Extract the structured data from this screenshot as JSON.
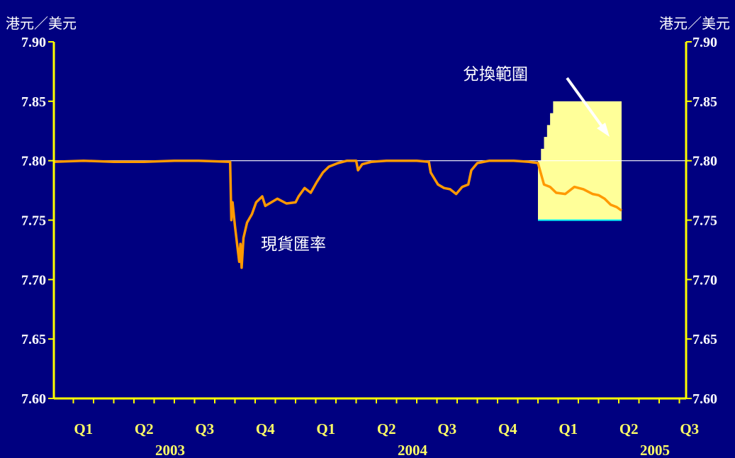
{
  "chart_data": {
    "type": "line",
    "unit_label_left": "港元／美元",
    "unit_label_right": "港元／美元",
    "ylim": [
      7.6,
      7.9
    ],
    "y_ticks": [
      "7.90",
      "7.85",
      "7.80",
      "7.75",
      "7.70",
      "7.65",
      "7.60"
    ],
    "x_quarters": [
      "Q1",
      "Q2",
      "Q3",
      "Q4",
      "Q1",
      "Q2",
      "Q3",
      "Q4",
      "Q1",
      "Q2",
      "Q3"
    ],
    "x_years": [
      "2003",
      "2004",
      "2005"
    ],
    "reference_line": 7.8,
    "series": [
      {
        "name": "現貨匯率",
        "color": "#ff9900",
        "points": [
          [
            0.0,
            7.799
          ],
          [
            0.5,
            7.8
          ],
          [
            1.0,
            7.799
          ],
          [
            1.5,
            7.799
          ],
          [
            2.0,
            7.8
          ],
          [
            2.4,
            7.8
          ],
          [
            2.92,
            7.799
          ],
          [
            2.94,
            7.75
          ],
          [
            2.96,
            7.765
          ],
          [
            3.0,
            7.745
          ],
          [
            3.04,
            7.728
          ],
          [
            3.07,
            7.715
          ],
          [
            3.09,
            7.73
          ],
          [
            3.11,
            7.71
          ],
          [
            3.14,
            7.735
          ],
          [
            3.2,
            7.748
          ],
          [
            3.28,
            7.755
          ],
          [
            3.35,
            7.765
          ],
          [
            3.45,
            7.77
          ],
          [
            3.5,
            7.762
          ],
          [
            3.6,
            7.765
          ],
          [
            3.7,
            7.768
          ],
          [
            3.85,
            7.764
          ],
          [
            4.0,
            7.765
          ],
          [
            4.05,
            7.77
          ],
          [
            4.15,
            7.777
          ],
          [
            4.25,
            7.773
          ],
          [
            4.35,
            7.782
          ],
          [
            4.45,
            7.79
          ],
          [
            4.55,
            7.795
          ],
          [
            4.7,
            7.798
          ],
          [
            4.85,
            7.8
          ],
          [
            5.0,
            7.8
          ],
          [
            5.03,
            7.792
          ],
          [
            5.1,
            7.797
          ],
          [
            5.25,
            7.799
          ],
          [
            5.5,
            7.8
          ],
          [
            6.0,
            7.8
          ],
          [
            6.2,
            7.799
          ],
          [
            6.23,
            7.79
          ],
          [
            6.35,
            7.78
          ],
          [
            6.45,
            7.777
          ],
          [
            6.55,
            7.776
          ],
          [
            6.65,
            7.772
          ],
          [
            6.75,
            7.778
          ],
          [
            6.85,
            7.78
          ],
          [
            6.9,
            7.792
          ],
          [
            7.0,
            7.798
          ],
          [
            7.2,
            7.8
          ],
          [
            7.6,
            7.8
          ],
          [
            7.85,
            7.799
          ],
          [
            8.0,
            7.798
          ],
          [
            8.1,
            7.78
          ],
          [
            8.2,
            7.778
          ],
          [
            8.3,
            7.773
          ],
          [
            8.45,
            7.772
          ],
          [
            8.6,
            7.778
          ],
          [
            8.75,
            7.776
          ],
          [
            8.9,
            7.772
          ],
          [
            9.0,
            7.771
          ],
          [
            9.1,
            7.768
          ],
          [
            9.2,
            7.763
          ],
          [
            9.3,
            7.761
          ],
          [
            9.38,
            7.758
          ]
        ]
      }
    ],
    "band": {
      "name": "兌換範圍",
      "color": "#ffff99",
      "x_start": 8.0,
      "x_end": 9.38,
      "lower": 7.75,
      "upper_steps": [
        [
          8.0,
          7.8
        ],
        [
          8.05,
          7.81
        ],
        [
          8.1,
          7.82
        ],
        [
          8.15,
          7.83
        ],
        [
          8.2,
          7.84
        ],
        [
          8.25,
          7.85
        ],
        [
          9.38,
          7.85
        ]
      ]
    },
    "annotations": {
      "spot_label": "現貨匯率",
      "band_label": "兌換範圍"
    }
  }
}
